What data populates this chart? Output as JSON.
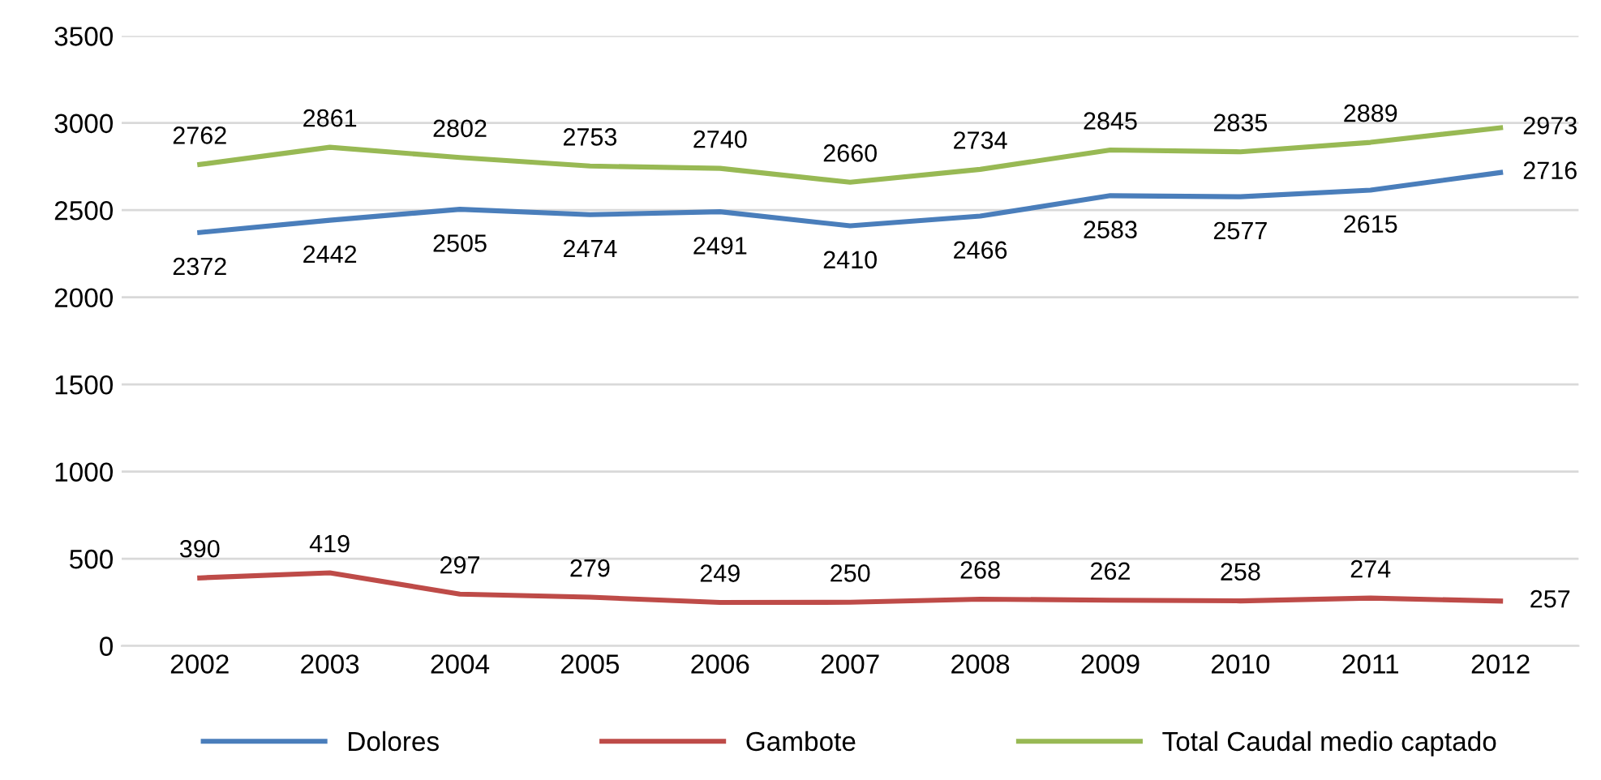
{
  "chart_data": {
    "type": "line",
    "categories": [
      "2002",
      "2003",
      "2004",
      "2005",
      "2006",
      "2007",
      "2008",
      "2009",
      "2010",
      "2011",
      "2012"
    ],
    "series": [
      {
        "name": "Dolores",
        "color": "#4a7ebb",
        "values": [
          2372,
          2442,
          2505,
          2474,
          2491,
          2410,
          2466,
          2583,
          2577,
          2615,
          2716
        ]
      },
      {
        "name": "Gambote",
        "color": "#be4b48",
        "values": [
          390,
          419,
          297,
          279,
          249,
          250,
          268,
          262,
          258,
          274,
          257
        ]
      },
      {
        "name": "Total Caudal medio captado",
        "color": "#98b954",
        "values": [
          2762,
          2861,
          2802,
          2753,
          2740,
          2660,
          2734,
          2845,
          2835,
          2889,
          2973
        ]
      }
    ],
    "ylim": [
      0,
      3500
    ],
    "yticks": [
      0,
      500,
      1000,
      1500,
      2000,
      2500,
      3000,
      3500
    ],
    "grid": "y",
    "legend": "bottom",
    "data_labels": true,
    "marker": "none",
    "line_style": "solid"
  }
}
